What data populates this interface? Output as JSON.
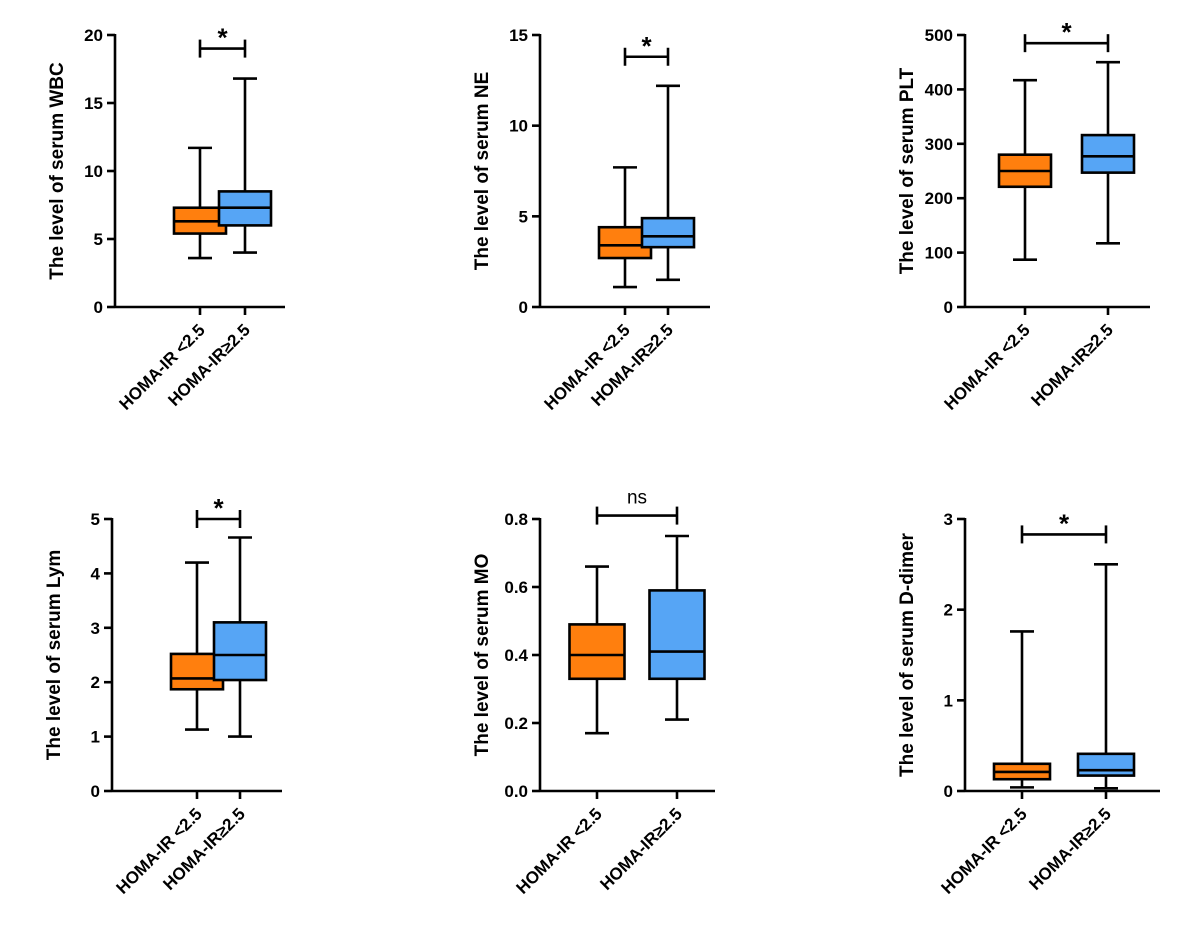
{
  "figure": {
    "panel_count": 6
  },
  "colors": {
    "group1": "#ff7f0e",
    "group2": "#56a5f5",
    "ink": "#000000"
  },
  "chart_data": [
    {
      "type": "box",
      "ylabel": "The level of serum WBC",
      "ylim": [
        0,
        20
      ],
      "yticks": [
        0,
        5,
        10,
        15,
        20
      ],
      "yticklabels": [
        "0",
        "5",
        "10",
        "15",
        "20"
      ],
      "categories": [
        "HOMA-IR <2.5",
        "HOMA-IR≥2.5"
      ],
      "boxes": [
        {
          "min": 3.6,
          "q1": 5.4,
          "median": 6.3,
          "q3": 7.3,
          "max": 11.7
        },
        {
          "min": 4.0,
          "q1": 6.0,
          "median": 7.3,
          "q3": 8.5,
          "max": 16.8
        }
      ],
      "significance": "*",
      "bracket_y": 19.0
    },
    {
      "type": "box",
      "ylabel": "The level of serum NE",
      "ylim": [
        0,
        15
      ],
      "yticks": [
        0,
        5,
        10,
        15
      ],
      "yticklabels": [
        "0",
        "5",
        "10",
        "15"
      ],
      "categories": [
        "HOMA-IR <2.5",
        "HOMA-IR≥2.5"
      ],
      "boxes": [
        {
          "min": 1.1,
          "q1": 2.7,
          "median": 3.4,
          "q3": 4.4,
          "max": 7.7
        },
        {
          "min": 1.5,
          "q1": 3.3,
          "median": 3.9,
          "q3": 4.9,
          "max": 12.2
        }
      ],
      "significance": "*",
      "bracket_y": 13.8
    },
    {
      "type": "box",
      "ylabel": "The level of serum PLT",
      "ylim": [
        0,
        500
      ],
      "yticks": [
        0,
        100,
        200,
        300,
        400,
        500
      ],
      "yticklabels": [
        "0",
        "100",
        "200",
        "300",
        "400",
        "500"
      ],
      "categories": [
        "HOMA-IR <2.5",
        "HOMA-IR≥2.5"
      ],
      "boxes": [
        {
          "min": 87,
          "q1": 221,
          "median": 250,
          "q3": 280,
          "max": 417
        },
        {
          "min": 117,
          "q1": 247,
          "median": 277,
          "q3": 316,
          "max": 450
        }
      ],
      "significance": "*",
      "bracket_y": 485
    },
    {
      "type": "box",
      "ylabel": "The level of serum Lym",
      "ylim": [
        0,
        5
      ],
      "yticks": [
        0,
        1,
        2,
        3,
        4,
        5
      ],
      "yticklabels": [
        "0",
        "1",
        "2",
        "3",
        "4",
        "5"
      ],
      "categories": [
        "HOMA-IR <2.5",
        "HOMA-IR≥2.5"
      ],
      "boxes": [
        {
          "min": 1.13,
          "q1": 1.87,
          "median": 2.07,
          "q3": 2.52,
          "max": 4.2
        },
        {
          "min": 1.0,
          "q1": 2.04,
          "median": 2.5,
          "q3": 3.1,
          "max": 4.66
        }
      ],
      "significance": "*",
      "bracket_y": 5.0
    },
    {
      "type": "box",
      "ylabel": "The level of serum MO",
      "ylim": [
        0,
        0.8
      ],
      "yticks": [
        0,
        0.2,
        0.4,
        0.6,
        0.8
      ],
      "yticklabels": [
        "0.0",
        "0.2",
        "0.4",
        "0.6",
        "0.8"
      ],
      "categories": [
        "HOMA-IR <2.5",
        "HOMA-IR≥2.5"
      ],
      "boxes": [
        {
          "min": 0.17,
          "q1": 0.33,
          "median": 0.4,
          "q3": 0.49,
          "max": 0.66
        },
        {
          "min": 0.21,
          "q1": 0.33,
          "median": 0.41,
          "q3": 0.59,
          "max": 0.75
        }
      ],
      "significance": "ns",
      "bracket_y": 0.81
    },
    {
      "type": "box",
      "ylabel": "The level of serum D-dimer",
      "ylim": [
        0,
        3
      ],
      "yticks": [
        0,
        1,
        2,
        3
      ],
      "yticklabels": [
        "0",
        "1",
        "2",
        "3"
      ],
      "categories": [
        "HOMA-IR <2.5",
        "HOMA-IR≥2.5"
      ],
      "boxes": [
        {
          "min": 0.04,
          "q1": 0.13,
          "median": 0.21,
          "q3": 0.3,
          "max": 1.76
        },
        {
          "min": 0.03,
          "q1": 0.17,
          "median": 0.23,
          "q3": 0.41,
          "max": 2.5
        }
      ],
      "significance": "*",
      "bracket_y": 2.83
    }
  ]
}
